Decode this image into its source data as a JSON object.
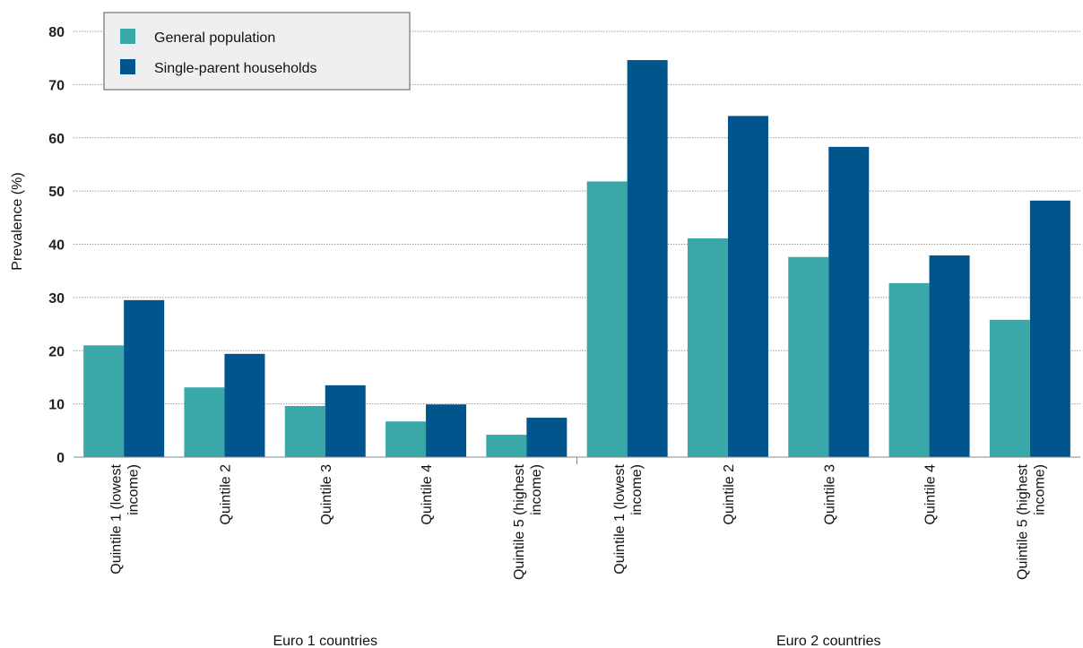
{
  "chart_data": {
    "type": "bar",
    "ylabel": "Prevalence (%)",
    "xlabel": "",
    "ylim": [
      0,
      80
    ],
    "yticks": [
      0,
      10,
      20,
      30,
      40,
      50,
      60,
      70,
      80
    ],
    "grid": true,
    "legend_position": "top-left",
    "groups": [
      {
        "label": "Euro 1 countries",
        "categories": [
          [
            "Quintile 1 (lowest",
            "income)"
          ],
          [
            "Quintile 2"
          ],
          [
            "Quintile 3"
          ],
          [
            "Quintile 4"
          ],
          [
            "Quintile 5 (highest",
            "income)"
          ]
        ]
      },
      {
        "label": "Euro 2 countries",
        "categories": [
          [
            "Quintile 1 (lowest",
            "income)"
          ],
          [
            "Quintile 2"
          ],
          [
            "Quintile 3"
          ],
          [
            "Quintile 4"
          ],
          [
            "Quintile 5 (highest",
            "income)"
          ]
        ]
      }
    ],
    "series": [
      {
        "name": "General population",
        "color": "#3aa8a8",
        "values": [
          21,
          13.1,
          9.6,
          6.7,
          4.2,
          51.8,
          41.1,
          37.6,
          32.7,
          25.8
        ]
      },
      {
        "name": "Single-parent households",
        "color": "#00558c",
        "values": [
          29.5,
          19.4,
          13.5,
          9.9,
          7.4,
          74.6,
          64.1,
          58.3,
          37.9,
          48.2
        ]
      }
    ]
  }
}
